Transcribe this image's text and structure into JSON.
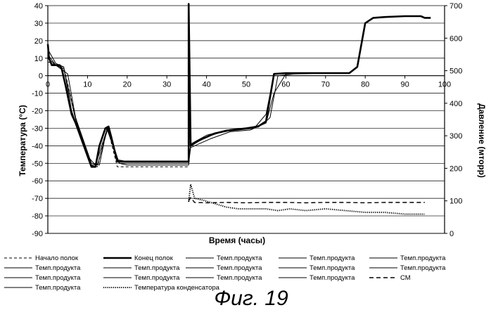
{
  "chart_data": {
    "type": "line",
    "title": "",
    "xlabel": "Время (часы)",
    "ylabel_left": "Температура (°C)",
    "ylabel_right": "Давление (мторр)",
    "xlim": [
      0,
      100
    ],
    "ylim_left": [
      -90,
      40
    ],
    "ylim_right": [
      0,
      700
    ],
    "x_ticks": [
      0,
      10,
      20,
      30,
      40,
      50,
      60,
      70,
      80,
      90,
      100
    ],
    "y_ticks_left": [
      -90,
      -80,
      -70,
      -60,
      -50,
      -40,
      -30,
      -20,
      -10,
      0,
      10,
      20,
      30,
      40
    ],
    "y_ticks_right": [
      0,
      100,
      200,
      300,
      400,
      500,
      600,
      700
    ],
    "grid": "horizontal",
    "legend_placement": "bottom",
    "caption": "Фиг. 19",
    "series": [
      {
        "name": "Начало полок",
        "axis": "left",
        "style": "dashed-thin",
        "x": [
          0,
          2,
          4,
          7,
          11,
          12.5,
          15,
          17.5,
          20,
          35.5
        ],
        "y": [
          8,
          6,
          5,
          -24,
          -51,
          -52,
          -29,
          -52,
          -52,
          -52
        ]
      },
      {
        "name": "Конец полок",
        "axis": "left",
        "style": "bold",
        "x": [
          0,
          0.3,
          1,
          3,
          3.5,
          4.5,
          6,
          7,
          11,
          12,
          13,
          14.5,
          15.3,
          16,
          17.5,
          20,
          35.5,
          35.5,
          36,
          38,
          42,
          46,
          50,
          53,
          55,
          57,
          60,
          65,
          70,
          73,
          76,
          78,
          80,
          82,
          85,
          90,
          94,
          95,
          96.5
        ],
        "y": [
          18,
          10,
          6,
          6,
          4,
          -6,
          -22,
          -27,
          -52,
          -52,
          -40,
          -30,
          -29,
          -35,
          -49,
          -49,
          -49,
          41,
          -40,
          -37,
          -33,
          -31,
          -30,
          -29,
          -26,
          1,
          1.5,
          1.5,
          1.5,
          1.5,
          1.5,
          5,
          30,
          33,
          33.5,
          34,
          34,
          33,
          33
        ]
      },
      {
        "name": "Темп.продукта",
        "axis": "left",
        "style": "thin",
        "x": [
          0,
          2,
          4,
          6,
          10,
          12,
          15,
          17.5,
          20,
          35.5,
          36,
          40,
          44,
          48,
          52,
          55,
          57,
          60,
          70
        ],
        "y": [
          15,
          7,
          5,
          -20,
          -46,
          -51,
          -30,
          -48,
          -49,
          -49,
          -40,
          -35,
          -32,
          -31,
          -30,
          -22,
          1,
          1.5,
          1.5
        ]
      },
      {
        "name": "Темп.продукта",
        "axis": "left",
        "style": "thin",
        "x": [
          0,
          2,
          4,
          7,
          11,
          12.5,
          15,
          18,
          20,
          35.5,
          36,
          40,
          45,
          50,
          54,
          56,
          58,
          62,
          70
        ],
        "y": [
          12,
          6,
          4,
          -25,
          -51,
          -51,
          -31,
          -50,
          -51,
          -51,
          -39,
          -34,
          -31,
          -30,
          -28,
          -24,
          0,
          1,
          1.5
        ]
      },
      {
        "name": "Темп.продукта",
        "axis": "left",
        "style": "thin",
        "x": [
          0,
          2,
          5,
          7,
          11,
          13,
          15,
          18,
          20,
          35.5,
          36,
          41,
          46,
          51,
          55,
          57,
          60,
          70
        ],
        "y": [
          10,
          6,
          1,
          -24,
          -50,
          -51,
          -29,
          -50,
          -50,
          -50,
          -41,
          -36,
          -32,
          -31,
          -27,
          -10,
          1,
          1.5
        ]
      },
      {
        "name": "Температура конденсатора",
        "axis": "left",
        "style": "dotted",
        "x": [
          35.5,
          36,
          37,
          39,
          42,
          45,
          48,
          52,
          55,
          58,
          61,
          65,
          70,
          75,
          80,
          85,
          90,
          95
        ],
        "y": [
          -72,
          -62,
          -70,
          -71,
          -73,
          -75,
          -76,
          -76,
          -76,
          -77,
          -76,
          -77,
          -76,
          -77,
          -78,
          -78,
          -79,
          -79
        ]
      },
      {
        "name": "СМ",
        "axis": "right",
        "style": "dashed",
        "x": [
          35.5,
          36,
          37,
          40,
          45,
          50,
          55,
          60,
          65,
          70,
          75,
          80,
          85,
          90,
          95
        ],
        "y": [
          100,
          110,
          95,
          94,
          95,
          94,
          95,
          95,
          94,
          95,
          95,
          94,
          95,
          95,
          95
        ]
      }
    ],
    "legend": [
      "Начало полок",
      "Конец полок",
      "Темп.продукта",
      "Темп.продукта",
      "Темп.продукта",
      "Темп.продукта",
      "Темп.продукта",
      "Темп.продукта",
      "Темп.продукта",
      "Темп.продукта",
      "Темп.продукта",
      "Темп.продукта",
      "Темп.продукта",
      "Темп.продукта",
      "СМ",
      "Темп.продукта",
      "Температура конденсатора"
    ]
  }
}
